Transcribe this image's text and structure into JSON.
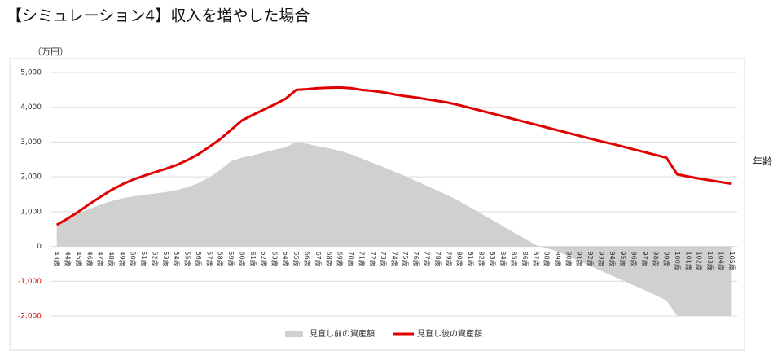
{
  "chart_data": {
    "type": "area-line",
    "title": "【シミュレーション4】収入を増やした場合",
    "y_unit": "（万円）",
    "x_label": "年齢",
    "categories": [
      "43歳",
      "44歳",
      "45歳",
      "46歳",
      "47歳",
      "48歳",
      "49歳",
      "50歳",
      "51歳",
      "52歳",
      "53歳",
      "54歳",
      "55歳",
      "56歳",
      "57歳",
      "58歳",
      "59歳",
      "60歳",
      "61歳",
      "62歳",
      "63歳",
      "64歳",
      "65歳",
      "66歳",
      "67歳",
      "68歳",
      "69歳",
      "70歳",
      "71歳",
      "72歳",
      "73歳",
      "74歳",
      "75歳",
      "76歳",
      "77歳",
      "78歳",
      "79歳",
      "80歳",
      "81歳",
      "82歳",
      "83歳",
      "84歳",
      "85歳",
      "86歳",
      "87歳",
      "88歳",
      "89歳",
      "90歳",
      "91歳",
      "92歳",
      "93歳",
      "94歳",
      "95歳",
      "96歳",
      "97歳",
      "98歳",
      "99歳",
      "100歳",
      "101歳",
      "102歳",
      "103歳",
      "104歳",
      "105歳"
    ],
    "series": [
      {
        "name": "見直し前の資産額",
        "kind": "area",
        "color": "#d0d0d0",
        "values": [
          620,
          780,
          950,
          1080,
          1200,
          1300,
          1380,
          1440,
          1480,
          1520,
          1560,
          1620,
          1700,
          1820,
          1980,
          2200,
          2450,
          2550,
          2620,
          2700,
          2780,
          2850,
          3000,
          2950,
          2880,
          2820,
          2750,
          2650,
          2530,
          2400,
          2280,
          2150,
          2020,
          1880,
          1740,
          1600,
          1460,
          1300,
          1120,
          940,
          760,
          580,
          400,
          220,
          40,
          -50,
          -150,
          -280,
          -420,
          -560,
          -700,
          -840,
          -980,
          -1120,
          -1260,
          -1400,
          -1560,
          -2000,
          -2000,
          -2000,
          -2000,
          -2000,
          -2000
        ]
      },
      {
        "name": "見直し後の資産額",
        "kind": "line",
        "color": "#e00000",
        "values": [
          620,
          800,
          1000,
          1220,
          1420,
          1620,
          1780,
          1920,
          2030,
          2130,
          2230,
          2340,
          2480,
          2650,
          2860,
          3080,
          3350,
          3620,
          3780,
          3930,
          4080,
          4240,
          4500,
          4520,
          4550,
          4560,
          4570,
          4550,
          4500,
          4470,
          4430,
          4370,
          4320,
          4280,
          4230,
          4180,
          4130,
          4060,
          3980,
          3900,
          3820,
          3740,
          3660,
          3580,
          3500,
          3420,
          3340,
          3260,
          3180,
          3100,
          3020,
          2950,
          2870,
          2790,
          2710,
          2630,
          2550,
          2070,
          2010,
          1950,
          1900,
          1850,
          1800
        ]
      }
    ],
    "ylim": [
      -2000,
      5000
    ],
    "yticks": [
      {
        "value": -2000,
        "label": "-2,000"
      },
      {
        "value": -1000,
        "label": "-1,000"
      },
      0,
      {
        "value": 1000,
        "label": "1,000"
      },
      {
        "value": 2000,
        "label": "2,000"
      },
      {
        "value": 3000,
        "label": "3,000"
      },
      {
        "value": 4000,
        "label": "4,000"
      },
      {
        "value": 5000,
        "label": "5,000"
      }
    ],
    "grid": true,
    "negative_tick_color": "#e00000",
    "legend": "bottom"
  }
}
